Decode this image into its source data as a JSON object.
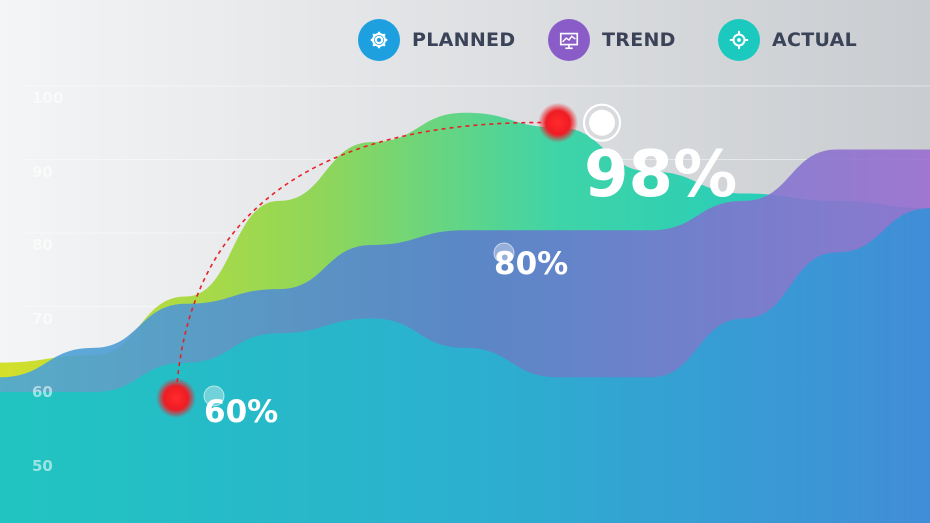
{
  "legend": [
    {
      "label": "PLANNED",
      "icon": "gear-icon",
      "color": "#1ea0e0"
    },
    {
      "label": "TREND",
      "icon": "presentation-chart-icon",
      "color": "#8a5cc8"
    },
    {
      "label": "ACTUAL",
      "icon": "target-icon",
      "color": "#1cc9bf"
    }
  ],
  "chart_data": {
    "type": "area",
    "x": [
      0,
      10,
      20,
      30,
      40,
      50,
      60,
      70,
      80,
      90,
      100
    ],
    "ylim": [
      45,
      100
    ],
    "yticks": [
      "100",
      "90",
      "80",
      "70",
      "60",
      "50"
    ],
    "grid": true,
    "legend_position": "top-right",
    "series": [
      {
        "name": "PLANNED",
        "color": "#2f97d8",
        "values": [
          60,
          60,
          64,
          68,
          70,
          66,
          62,
          62,
          70,
          79,
          85
        ]
      },
      {
        "name": "TREND",
        "color": "#8a60c8",
        "values": [
          62,
          66,
          72,
          74,
          80,
          82,
          82,
          82,
          86,
          93,
          93
        ]
      },
      {
        "name": "ACTUAL",
        "color": "#3cd0b0",
        "values": [
          64,
          65,
          73,
          86,
          94,
          98,
          96,
          90,
          87,
          86,
          85
        ]
      }
    ],
    "annotations": [
      {
        "label": "60%",
        "value": 60
      },
      {
        "label": "80%",
        "value": 80
      },
      {
        "label": "98%",
        "value": 98
      }
    ]
  }
}
